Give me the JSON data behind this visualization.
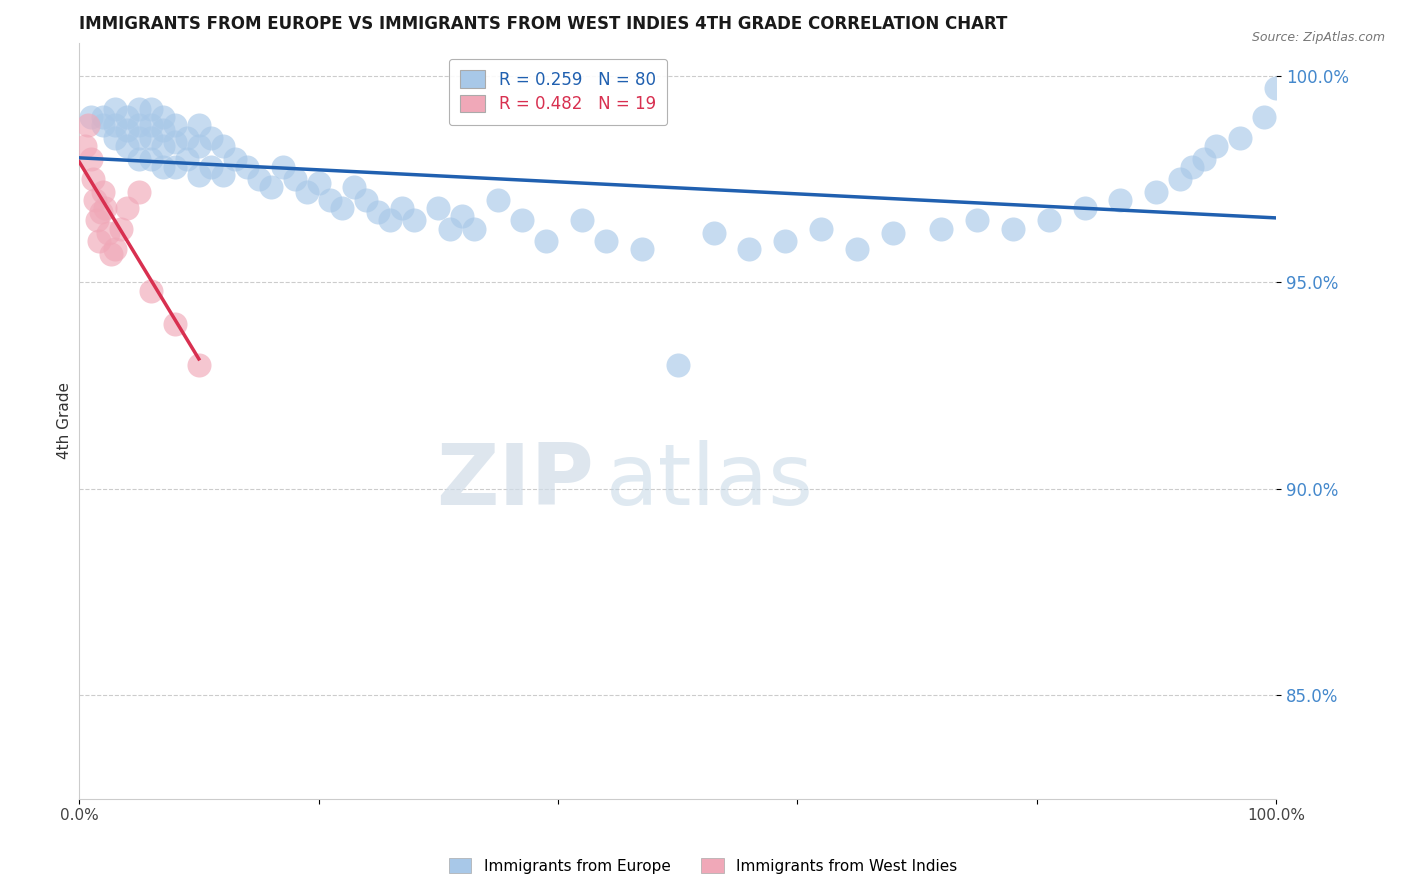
{
  "title": "IMMIGRANTS FROM EUROPE VS IMMIGRANTS FROM WEST INDIES 4TH GRADE CORRELATION CHART",
  "source": "Source: ZipAtlas.com",
  "ylabel": "4th Grade",
  "xlim": [
    0.0,
    1.0
  ],
  "ylim": [
    0.825,
    1.008
  ],
  "yticks": [
    0.85,
    0.9,
    0.95,
    1.0
  ],
  "ytick_labels": [
    "85.0%",
    "90.0%",
    "95.0%",
    "100.0%"
  ],
  "blue_color": "#a8c8e8",
  "pink_color": "#f0a8b8",
  "blue_line_color": "#2060b0",
  "pink_line_color": "#d83050",
  "R_blue": 0.259,
  "N_blue": 80,
  "R_pink": 0.482,
  "N_pink": 19,
  "legend_label_blue": "Immigrants from Europe",
  "legend_label_pink": "Immigrants from West Indies",
  "blue_scatter_x": [
    0.01,
    0.02,
    0.02,
    0.03,
    0.03,
    0.03,
    0.04,
    0.04,
    0.04,
    0.05,
    0.05,
    0.05,
    0.05,
    0.06,
    0.06,
    0.06,
    0.06,
    0.07,
    0.07,
    0.07,
    0.07,
    0.08,
    0.08,
    0.08,
    0.09,
    0.09,
    0.1,
    0.1,
    0.1,
    0.11,
    0.11,
    0.12,
    0.12,
    0.13,
    0.14,
    0.15,
    0.16,
    0.17,
    0.18,
    0.19,
    0.2,
    0.21,
    0.22,
    0.23,
    0.24,
    0.25,
    0.26,
    0.27,
    0.28,
    0.3,
    0.31,
    0.32,
    0.33,
    0.35,
    0.37,
    0.39,
    0.42,
    0.44,
    0.47,
    0.5,
    0.53,
    0.56,
    0.59,
    0.62,
    0.65,
    0.68,
    0.72,
    0.75,
    0.78,
    0.81,
    0.84,
    0.87,
    0.9,
    0.92,
    0.93,
    0.94,
    0.95,
    0.97,
    0.99,
    1.0
  ],
  "blue_scatter_y": [
    0.99,
    0.99,
    0.988,
    0.992,
    0.988,
    0.985,
    0.99,
    0.987,
    0.983,
    0.992,
    0.988,
    0.985,
    0.98,
    0.992,
    0.988,
    0.985,
    0.98,
    0.99,
    0.987,
    0.983,
    0.978,
    0.988,
    0.984,
    0.978,
    0.985,
    0.98,
    0.988,
    0.983,
    0.976,
    0.985,
    0.978,
    0.983,
    0.976,
    0.98,
    0.978,
    0.975,
    0.973,
    0.978,
    0.975,
    0.972,
    0.974,
    0.97,
    0.968,
    0.973,
    0.97,
    0.967,
    0.965,
    0.968,
    0.965,
    0.968,
    0.963,
    0.966,
    0.963,
    0.97,
    0.965,
    0.96,
    0.965,
    0.96,
    0.958,
    0.93,
    0.962,
    0.958,
    0.96,
    0.963,
    0.958,
    0.962,
    0.963,
    0.965,
    0.963,
    0.965,
    0.968,
    0.97,
    0.972,
    0.975,
    0.978,
    0.98,
    0.983,
    0.985,
    0.99,
    0.997
  ],
  "pink_scatter_x": [
    0.005,
    0.007,
    0.01,
    0.012,
    0.013,
    0.015,
    0.017,
    0.018,
    0.02,
    0.022,
    0.024,
    0.027,
    0.03,
    0.035,
    0.04,
    0.05,
    0.06,
    0.08,
    0.1
  ],
  "pink_scatter_y": [
    0.983,
    0.988,
    0.98,
    0.975,
    0.97,
    0.965,
    0.96,
    0.967,
    0.972,
    0.968,
    0.962,
    0.957,
    0.958,
    0.963,
    0.968,
    0.972,
    0.948,
    0.94,
    0.93
  ],
  "watermark_zip": "ZIP",
  "watermark_atlas": "atlas",
  "background_color": "#ffffff",
  "grid_color": "#cccccc",
  "tick_color": "#4488cc"
}
